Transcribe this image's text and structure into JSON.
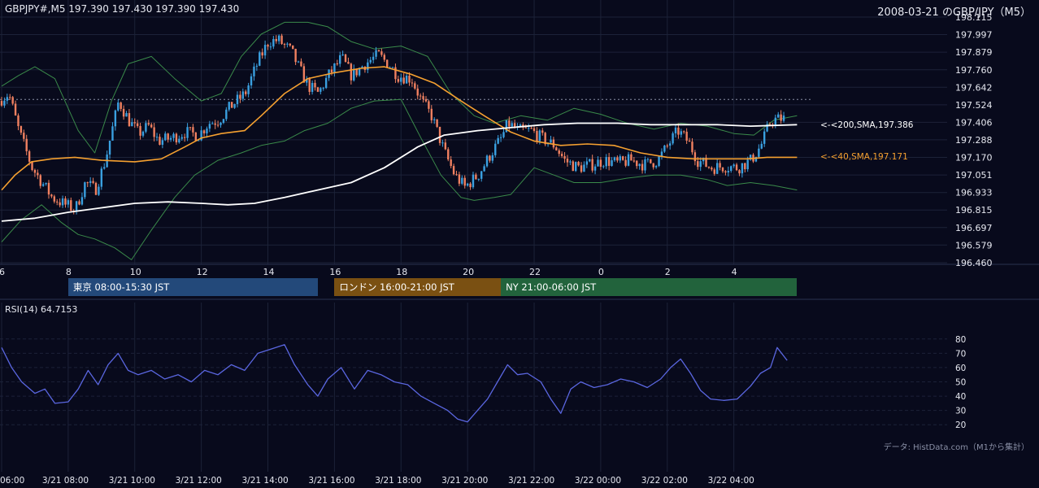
{
  "header": {
    "symbol_info": "GBPJPY#,M5 197.390 197.430 197.390 197.430",
    "date_title": "2008-03-21 のGBP/JPY（M5）"
  },
  "sessions": [
    {
      "label": "東京 08:00-15:30 JST",
      "color": "#23497a",
      "start_h": 8.0,
      "end_h": 15.5
    },
    {
      "label": "ロンドン 16:00-21:00 JST",
      "color": "#7a5012",
      "start_h": 16.0,
      "end_h": 21.0
    },
    {
      "label": "NY 21:00-06:00 JST",
      "color": "#22633c",
      "start_h": 21.0,
      "end_h": 29.9
    }
  ],
  "indicator_labels": {
    "sma200": "<-<200,SMA,197.386",
    "sma40": "<-<40,SMA,197.171"
  },
  "rsi_title": "RSI(14) 64.7153",
  "credit": "データ: HistData.com（M1から集計）",
  "colors": {
    "background": "#080a1c",
    "grid": "#1c2238",
    "up_candle": "#3aa0e0",
    "down_candle": "#f08060",
    "sma200": "#ffffff",
    "sma40": "#f5a030",
    "bollinger": "#3a8a4a",
    "rsi": "#5a66e0",
    "text": "#e6e8f0"
  },
  "chart_data": {
    "type": "candlestick",
    "x_start_h": 6.0,
    "x_end_h": 30.5,
    "ylim": [
      196.46,
      198.115
    ],
    "y_ticks": [
      196.46,
      196.579,
      196.697,
      196.815,
      196.933,
      197.051,
      197.17,
      197.288,
      197.406,
      197.524,
      197.642,
      197.76,
      197.879,
      197.997,
      198.115
    ],
    "x_ticks": [
      {
        "h": 6,
        "label": "6"
      },
      {
        "h": 8,
        "label": "8"
      },
      {
        "h": 10,
        "label": "10"
      },
      {
        "h": 12,
        "label": "12"
      },
      {
        "h": 14,
        "label": "14"
      },
      {
        "h": 16,
        "label": "16"
      },
      {
        "h": 18,
        "label": "18"
      },
      {
        "h": 20,
        "label": "20"
      },
      {
        "h": 22,
        "label": "22"
      },
      {
        "h": 24,
        "label": "0"
      },
      {
        "h": 26,
        "label": "2"
      },
      {
        "h": 28,
        "label": "4"
      }
    ],
    "bottom_ticks": [
      {
        "h": 6,
        "label": "06:00"
      },
      {
        "h": 8,
        "label": "3/21 08:00"
      },
      {
        "h": 10,
        "label": "3/21 10:00"
      },
      {
        "h": 12,
        "label": "3/21 12:00"
      },
      {
        "h": 14,
        "label": "3/21 14:00"
      },
      {
        "h": 16,
        "label": "3/21 16:00"
      },
      {
        "h": 18,
        "label": "3/21 18:00"
      },
      {
        "h": 20,
        "label": "3/21 20:00"
      },
      {
        "h": 22,
        "label": "3/21 22:00"
      },
      {
        "h": 24,
        "label": "3/22 00:00"
      },
      {
        "h": 26,
        "label": "3/22 02:00"
      },
      {
        "h": 28,
        "label": "3/22 04:00"
      }
    ],
    "reference_line": 197.56,
    "close_path": [
      [
        6.0,
        197.55
      ],
      [
        6.3,
        197.6
      ],
      [
        6.6,
        197.35
      ],
      [
        7.0,
        197.1
      ],
      [
        7.3,
        197.0
      ],
      [
        7.6,
        196.9
      ],
      [
        8.0,
        196.85
      ],
      [
        8.3,
        196.82
      ],
      [
        8.6,
        197.0
      ],
      [
        8.9,
        196.95
      ],
      [
        9.2,
        197.15
      ],
      [
        9.4,
        197.35
      ],
      [
        9.6,
        197.55
      ],
      [
        9.9,
        197.42
      ],
      [
        10.2,
        197.33
      ],
      [
        10.5,
        197.38
      ],
      [
        10.8,
        197.28
      ],
      [
        11.2,
        197.3
      ],
      [
        11.6,
        197.34
      ],
      [
        12.0,
        197.32
      ],
      [
        12.3,
        197.4
      ],
      [
        12.6,
        197.42
      ],
      [
        13.0,
        197.52
      ],
      [
        13.4,
        197.6
      ],
      [
        13.8,
        197.82
      ],
      [
        14.1,
        197.95
      ],
      [
        14.4,
        197.96
      ],
      [
        14.8,
        197.88
      ],
      [
        15.0,
        197.78
      ],
      [
        15.3,
        197.65
      ],
      [
        15.6,
        197.6
      ],
      [
        15.9,
        197.72
      ],
      [
        16.3,
        197.84
      ],
      [
        16.6,
        197.72
      ],
      [
        17.0,
        197.8
      ],
      [
        17.4,
        197.86
      ],
      [
        17.7,
        197.8
      ],
      [
        18.0,
        197.72
      ],
      [
        18.4,
        197.7
      ],
      [
        18.7,
        197.55
      ],
      [
        19.0,
        197.45
      ],
      [
        19.4,
        197.2
      ],
      [
        19.7,
        197.05
      ],
      [
        20.0,
        196.97
      ],
      [
        20.4,
        197.05
      ],
      [
        20.8,
        197.2
      ],
      [
        21.1,
        197.3
      ],
      [
        21.3,
        197.4
      ],
      [
        21.6,
        197.35
      ],
      [
        22.0,
        197.35
      ],
      [
        22.3,
        197.3
      ],
      [
        22.7,
        197.25
      ],
      [
        23.0,
        197.15
      ],
      [
        23.4,
        197.1
      ],
      [
        23.8,
        197.12
      ],
      [
        24.2,
        197.15
      ],
      [
        24.6,
        197.13
      ],
      [
        25.0,
        197.15
      ],
      [
        25.4,
        197.12
      ],
      [
        25.8,
        197.15
      ],
      [
        26.1,
        197.25
      ],
      [
        26.4,
        197.35
      ],
      [
        26.7,
        197.28
      ],
      [
        27.0,
        197.15
      ],
      [
        27.4,
        197.1
      ],
      [
        27.8,
        197.11
      ],
      [
        28.2,
        197.1
      ],
      [
        28.6,
        197.15
      ],
      [
        28.9,
        197.25
      ],
      [
        29.2,
        197.42
      ],
      [
        29.5,
        197.43
      ]
    ],
    "sma40": [
      [
        6.0,
        196.95
      ],
      [
        6.4,
        197.05
      ],
      [
        6.9,
        197.14
      ],
      [
        7.5,
        197.16
      ],
      [
        8.2,
        197.17
      ],
      [
        9.0,
        197.15
      ],
      [
        10.0,
        197.14
      ],
      [
        10.8,
        197.16
      ],
      [
        11.5,
        197.24
      ],
      [
        12.0,
        197.3
      ],
      [
        12.6,
        197.33
      ],
      [
        13.3,
        197.35
      ],
      [
        13.8,
        197.45
      ],
      [
        14.5,
        197.6
      ],
      [
        15.2,
        197.7
      ],
      [
        16.0,
        197.74
      ],
      [
        16.8,
        197.77
      ],
      [
        17.5,
        197.78
      ],
      [
        18.3,
        197.73
      ],
      [
        19.0,
        197.67
      ],
      [
        19.8,
        197.55
      ],
      [
        20.5,
        197.45
      ],
      [
        21.3,
        197.34
      ],
      [
        22.0,
        197.28
      ],
      [
        22.8,
        197.25
      ],
      [
        23.6,
        197.26
      ],
      [
        24.4,
        197.25
      ],
      [
        25.2,
        197.2
      ],
      [
        26.0,
        197.17
      ],
      [
        26.8,
        197.16
      ],
      [
        27.6,
        197.16
      ],
      [
        28.4,
        197.16
      ],
      [
        29.0,
        197.17
      ],
      [
        29.9,
        197.17
      ]
    ],
    "sma200": [
      [
        6.0,
        196.74
      ],
      [
        7.0,
        196.76
      ],
      [
        8.0,
        196.8
      ],
      [
        9.0,
        196.83
      ],
      [
        10.0,
        196.86
      ],
      [
        11.0,
        196.87
      ],
      [
        12.0,
        196.86
      ],
      [
        12.8,
        196.85
      ],
      [
        13.6,
        196.86
      ],
      [
        14.5,
        196.9
      ],
      [
        15.5,
        196.95
      ],
      [
        16.5,
        197.0
      ],
      [
        17.5,
        197.1
      ],
      [
        18.5,
        197.24
      ],
      [
        19.3,
        197.32
      ],
      [
        20.3,
        197.35
      ],
      [
        21.3,
        197.37
      ],
      [
        22.3,
        197.39
      ],
      [
        23.3,
        197.4
      ],
      [
        24.5,
        197.4
      ],
      [
        25.5,
        197.39
      ],
      [
        26.5,
        197.39
      ],
      [
        27.5,
        197.39
      ],
      [
        28.5,
        197.38
      ],
      [
        29.9,
        197.39
      ]
    ],
    "bb_upper": [
      [
        6.0,
        197.65
      ],
      [
        6.5,
        197.72
      ],
      [
        7.0,
        197.78
      ],
      [
        7.6,
        197.7
      ],
      [
        8.3,
        197.35
      ],
      [
        8.8,
        197.2
      ],
      [
        9.3,
        197.55
      ],
      [
        9.8,
        197.8
      ],
      [
        10.5,
        197.85
      ],
      [
        11.2,
        197.7
      ],
      [
        12.0,
        197.55
      ],
      [
        12.6,
        197.6
      ],
      [
        13.2,
        197.85
      ],
      [
        13.8,
        198.0
      ],
      [
        14.5,
        198.08
      ],
      [
        15.2,
        198.08
      ],
      [
        15.8,
        198.05
      ],
      [
        16.5,
        197.95
      ],
      [
        17.2,
        197.9
      ],
      [
        18.0,
        197.92
      ],
      [
        18.8,
        197.85
      ],
      [
        19.5,
        197.6
      ],
      [
        20.2,
        197.45
      ],
      [
        20.8,
        197.4
      ],
      [
        21.6,
        197.45
      ],
      [
        22.4,
        197.42
      ],
      [
        23.2,
        197.5
      ],
      [
        24.0,
        197.46
      ],
      [
        24.8,
        197.4
      ],
      [
        25.6,
        197.36
      ],
      [
        26.4,
        197.4
      ],
      [
        27.2,
        197.38
      ],
      [
        28.0,
        197.33
      ],
      [
        28.6,
        197.32
      ],
      [
        29.2,
        197.42
      ],
      [
        29.9,
        197.45
      ]
    ],
    "bb_lower": [
      [
        6.0,
        196.6
      ],
      [
        6.6,
        196.75
      ],
      [
        7.2,
        196.85
      ],
      [
        7.8,
        196.73
      ],
      [
        8.3,
        196.65
      ],
      [
        8.8,
        196.62
      ],
      [
        9.4,
        196.56
      ],
      [
        9.9,
        196.48
      ],
      [
        10.5,
        196.68
      ],
      [
        11.2,
        196.9
      ],
      [
        11.8,
        197.05
      ],
      [
        12.5,
        197.15
      ],
      [
        13.2,
        197.2
      ],
      [
        13.8,
        197.25
      ],
      [
        14.5,
        197.28
      ],
      [
        15.1,
        197.35
      ],
      [
        15.8,
        197.4
      ],
      [
        16.5,
        197.5
      ],
      [
        17.2,
        197.55
      ],
      [
        18.0,
        197.56
      ],
      [
        18.6,
        197.3
      ],
      [
        19.2,
        197.05
      ],
      [
        19.8,
        196.9
      ],
      [
        20.2,
        196.88
      ],
      [
        20.8,
        196.9
      ],
      [
        21.3,
        196.92
      ],
      [
        22.0,
        197.1
      ],
      [
        22.6,
        197.05
      ],
      [
        23.2,
        197.0
      ],
      [
        24.0,
        197.0
      ],
      [
        24.8,
        197.03
      ],
      [
        25.6,
        197.05
      ],
      [
        26.4,
        197.05
      ],
      [
        27.2,
        197.02
      ],
      [
        27.8,
        196.98
      ],
      [
        28.5,
        197.0
      ],
      [
        29.2,
        196.98
      ],
      [
        29.9,
        196.95
      ]
    ],
    "rsi": {
      "ylim": [
        15,
        85
      ],
      "ticks": [
        20,
        30,
        40,
        50,
        60,
        70,
        80
      ],
      "points": [
        [
          6.0,
          74
        ],
        [
          6.3,
          60
        ],
        [
          6.6,
          50
        ],
        [
          7.0,
          42
        ],
        [
          7.3,
          45
        ],
        [
          7.6,
          35
        ],
        [
          8.0,
          36
        ],
        [
          8.3,
          45
        ],
        [
          8.6,
          58
        ],
        [
          8.9,
          48
        ],
        [
          9.2,
          62
        ],
        [
          9.5,
          70
        ],
        [
          9.8,
          58
        ],
        [
          10.1,
          55
        ],
        [
          10.5,
          58
        ],
        [
          10.9,
          52
        ],
        [
          11.3,
          55
        ],
        [
          11.7,
          50
        ],
        [
          12.1,
          58
        ],
        [
          12.5,
          55
        ],
        [
          12.9,
          62
        ],
        [
          13.3,
          58
        ],
        [
          13.7,
          70
        ],
        [
          14.1,
          73
        ],
        [
          14.5,
          76
        ],
        [
          14.8,
          62
        ],
        [
          15.2,
          48
        ],
        [
          15.5,
          40
        ],
        [
          15.8,
          52
        ],
        [
          16.2,
          60
        ],
        [
          16.6,
          45
        ],
        [
          17.0,
          58
        ],
        [
          17.4,
          55
        ],
        [
          17.8,
          50
        ],
        [
          18.2,
          48
        ],
        [
          18.6,
          40
        ],
        [
          19.0,
          35
        ],
        [
          19.4,
          30
        ],
        [
          19.7,
          24
        ],
        [
          20.0,
          22
        ],
        [
          20.3,
          30
        ],
        [
          20.6,
          38
        ],
        [
          20.9,
          50
        ],
        [
          21.2,
          62
        ],
        [
          21.5,
          55
        ],
        [
          21.8,
          56
        ],
        [
          22.2,
          50
        ],
        [
          22.5,
          38
        ],
        [
          22.8,
          28
        ],
        [
          23.1,
          45
        ],
        [
          23.4,
          50
        ],
        [
          23.8,
          46
        ],
        [
          24.2,
          48
        ],
        [
          24.6,
          52
        ],
        [
          25.0,
          50
        ],
        [
          25.4,
          46
        ],
        [
          25.8,
          52
        ],
        [
          26.1,
          60
        ],
        [
          26.4,
          66
        ],
        [
          26.7,
          56
        ],
        [
          27.0,
          44
        ],
        [
          27.3,
          38
        ],
        [
          27.7,
          37
        ],
        [
          28.1,
          38
        ],
        [
          28.5,
          47
        ],
        [
          28.8,
          56
        ],
        [
          29.1,
          60
        ],
        [
          29.3,
          74
        ],
        [
          29.6,
          65
        ]
      ]
    }
  }
}
